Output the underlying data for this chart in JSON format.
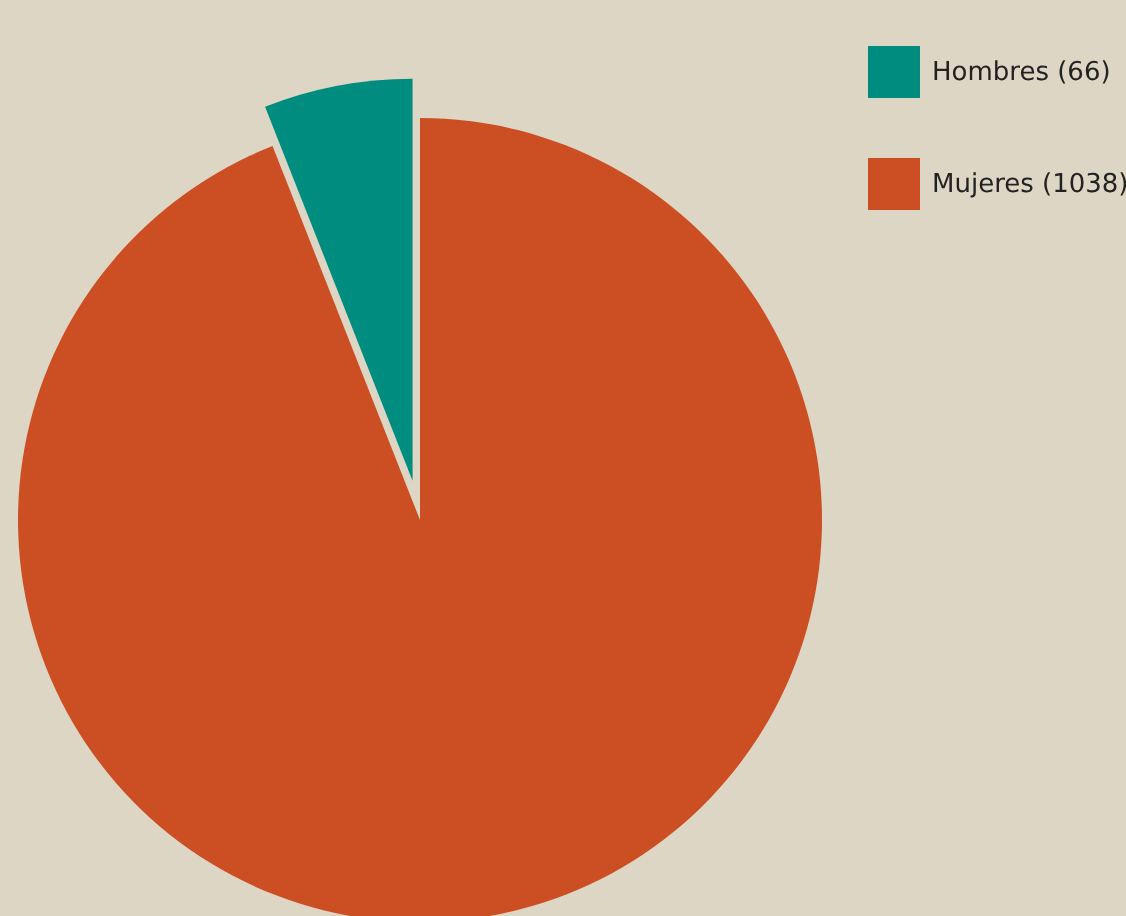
{
  "chart_data": {
    "type": "pie",
    "categories": [
      "Hombres (66)",
      "Mujeres (1038)"
    ],
    "values": [
      66,
      1038
    ],
    "colors": [
      "#008c7e",
      "#cc4f24"
    ],
    "legend": "top right"
  }
}
